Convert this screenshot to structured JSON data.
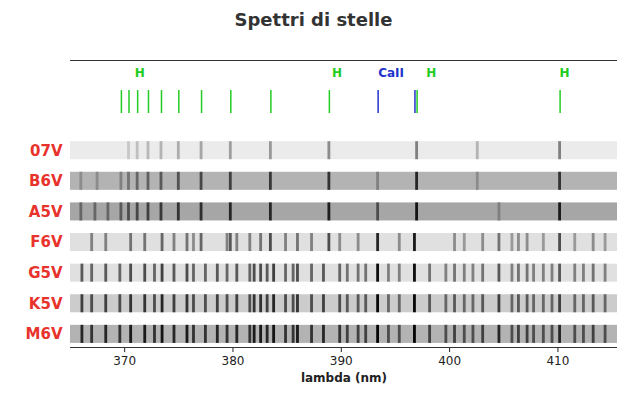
{
  "chart_data": {
    "type": "spectra",
    "title": "Spettri di stelle",
    "x_label": "lambda (nm)",
    "xlim": [
      365,
      415.5
    ],
    "xticks": [
      370,
      380,
      390,
      400,
      410
    ],
    "tick_labels": "x",
    "markers": [
      {
        "name": "H",
        "color": "#22cc22",
        "x": [
          369.7,
          370.4,
          371.2,
          372.2,
          373.4,
          375.0,
          377.1,
          379.8,
          383.5,
          388.9,
          397.0,
          410.2
        ],
        "label_x": [
          371.4,
          389.6,
          398.3,
          410.6
        ]
      },
      {
        "name": "CaII",
        "color": "#2233cc",
        "x": [
          393.4,
          396.8
        ],
        "label_x": [
          394.6
        ]
      }
    ],
    "series": [
      {
        "name": "07V",
        "color": "#e8332d",
        "background": 0.08,
        "x": [
          370.4,
          371.2,
          372.2,
          373.4,
          375.0,
          377.1,
          379.8,
          383.5,
          388.9,
          397.0,
          402.6,
          410.2
        ],
        "values": [
          0.22,
          0.25,
          0.28,
          0.3,
          0.32,
          0.35,
          0.38,
          0.4,
          0.45,
          0.5,
          0.3,
          0.5
        ]
      },
      {
        "name": "B6V",
        "color": "#e8332d",
        "background": 0.3,
        "x": [
          366.0,
          367.5,
          369.7,
          370.4,
          371.2,
          372.2,
          373.4,
          375.0,
          377.1,
          379.8,
          383.5,
          388.9,
          393.4,
          397.0,
          402.6,
          410.2
        ],
        "values": [
          0.45,
          0.45,
          0.5,
          0.55,
          0.6,
          0.62,
          0.65,
          0.68,
          0.72,
          0.75,
          0.78,
          0.8,
          0.5,
          0.85,
          0.45,
          0.8
        ]
      },
      {
        "name": "A5V",
        "color": "#e8332d",
        "background": 0.35,
        "x": [
          366.0,
          367.3,
          368.5,
          369.7,
          370.4,
          371.2,
          372.2,
          373.4,
          375.0,
          377.1,
          379.8,
          383.5,
          388.9,
          393.4,
          397.0,
          404.6,
          410.2
        ],
        "values": [
          0.6,
          0.6,
          0.6,
          0.65,
          0.7,
          0.72,
          0.75,
          0.78,
          0.8,
          0.82,
          0.85,
          0.85,
          0.88,
          0.7,
          0.92,
          0.5,
          0.9
        ]
      },
      {
        "name": "F6V",
        "color": "#e8332d",
        "background": 0.12,
        "x": [
          367.0,
          368.3,
          370.6,
          371.9,
          373.5,
          374.6,
          375.8,
          376.4,
          377.1,
          379.5,
          379.8,
          380.4,
          381.6,
          382.6,
          383.5,
          384.9,
          386.0,
          387.3,
          388.9,
          389.9,
          391.6,
          393.4,
          395.4,
          396.8,
          400.5,
          401.4,
          403.1,
          404.6,
          405.8,
          406.4,
          407.2,
          408.7,
          410.2,
          411.6,
          413.3,
          414.4
        ],
        "values": [
          0.5,
          0.5,
          0.55,
          0.55,
          0.6,
          0.5,
          0.55,
          0.45,
          0.6,
          0.5,
          0.65,
          0.5,
          0.5,
          0.55,
          0.7,
          0.5,
          0.55,
          0.5,
          0.7,
          0.45,
          0.45,
          0.85,
          0.45,
          0.9,
          0.45,
          0.4,
          0.45,
          0.55,
          0.4,
          0.45,
          0.45,
          0.4,
          0.7,
          0.4,
          0.45,
          0.4
        ]
      },
      {
        "name": "G5V",
        "color": "#e8332d",
        "background": 0.12,
        "x": [
          366.1,
          367.0,
          368.3,
          369.6,
          370.6,
          371.9,
          372.8,
          373.5,
          374.6,
          375.8,
          376.4,
          377.5,
          378.6,
          379.5,
          380.4,
          381.6,
          382.0,
          382.6,
          383.2,
          383.8,
          384.9,
          385.6,
          386.0,
          387.3,
          388.4,
          389.9,
          390.6,
          391.6,
          392.3,
          393.4,
          394.4,
          395.4,
          396.8,
          398.2,
          399.7,
          400.5,
          401.4,
          402.2,
          403.1,
          404.6,
          405.8,
          406.4,
          407.2,
          407.8,
          408.7,
          409.5,
          410.2,
          411.6,
          412.4,
          413.3,
          414.4
        ],
        "values": [
          0.65,
          0.6,
          0.65,
          0.6,
          0.7,
          0.7,
          0.6,
          0.75,
          0.65,
          0.7,
          0.6,
          0.6,
          0.65,
          0.6,
          0.65,
          0.6,
          0.7,
          0.7,
          0.65,
          0.75,
          0.6,
          0.6,
          0.7,
          0.6,
          0.65,
          0.6,
          0.55,
          0.55,
          0.55,
          0.95,
          0.5,
          0.5,
          0.95,
          0.55,
          0.5,
          0.55,
          0.5,
          0.5,
          0.55,
          0.65,
          0.5,
          0.55,
          0.55,
          0.5,
          0.5,
          0.5,
          0.65,
          0.5,
          0.5,
          0.55,
          0.5
        ]
      },
      {
        "name": "K5V",
        "color": "#e8332d",
        "background": 0.2,
        "x": [
          366.1,
          367.0,
          368.3,
          369.6,
          370.6,
          371.9,
          372.8,
          373.5,
          374.6,
          375.8,
          376.4,
          377.5,
          378.6,
          379.5,
          380.4,
          381.6,
          382.0,
          382.6,
          383.2,
          383.8,
          384.9,
          385.6,
          386.0,
          387.3,
          388.4,
          389.9,
          390.6,
          391.6,
          392.3,
          393.4,
          394.4,
          395.4,
          396.8,
          398.2,
          399.7,
          400.5,
          401.4,
          402.2,
          403.1,
          404.6,
          405.8,
          406.4,
          407.2,
          407.8,
          408.7,
          409.5,
          410.2,
          411.6,
          412.4,
          413.3,
          414.4
        ],
        "values": [
          0.75,
          0.7,
          0.75,
          0.7,
          0.8,
          0.8,
          0.7,
          0.85,
          0.75,
          0.8,
          0.7,
          0.7,
          0.75,
          0.7,
          0.75,
          0.7,
          0.8,
          0.8,
          0.75,
          0.85,
          0.7,
          0.7,
          0.8,
          0.7,
          0.75,
          0.7,
          0.65,
          0.65,
          0.65,
          0.97,
          0.6,
          0.6,
          0.97,
          0.65,
          0.6,
          0.65,
          0.6,
          0.6,
          0.65,
          0.75,
          0.6,
          0.65,
          0.65,
          0.6,
          0.6,
          0.6,
          0.75,
          0.6,
          0.6,
          0.65,
          0.6
        ]
      },
      {
        "name": "M6V",
        "color": "#e8332d",
        "background": 0.3,
        "x": [
          366.1,
          367.0,
          368.3,
          369.6,
          370.6,
          371.9,
          372.8,
          373.5,
          374.6,
          375.8,
          376.4,
          377.5,
          378.6,
          379.5,
          380.4,
          381.6,
          382.0,
          382.6,
          383.2,
          383.8,
          384.9,
          385.6,
          386.0,
          387.3,
          388.4,
          389.9,
          390.6,
          391.6,
          392.3,
          393.4,
          394.4,
          395.4,
          396.8,
          398.2,
          399.7,
          400.5,
          401.4,
          402.2,
          403.1,
          404.6,
          405.8,
          406.4,
          407.2,
          407.8,
          408.7,
          409.5,
          410.2,
          411.6,
          412.4,
          413.3,
          414.4
        ],
        "values": [
          0.85,
          0.8,
          0.85,
          0.8,
          0.9,
          0.9,
          0.8,
          0.92,
          0.85,
          0.9,
          0.8,
          0.8,
          0.85,
          0.8,
          0.85,
          0.8,
          0.9,
          0.9,
          0.85,
          0.92,
          0.8,
          0.8,
          0.9,
          0.8,
          0.85,
          0.8,
          0.75,
          0.75,
          0.75,
          0.98,
          0.7,
          0.7,
          0.98,
          0.75,
          0.7,
          0.75,
          0.7,
          0.7,
          0.75,
          0.85,
          0.7,
          0.75,
          0.75,
          0.7,
          0.7,
          0.7,
          0.85,
          0.7,
          0.7,
          0.75,
          0.7
        ]
      }
    ]
  }
}
